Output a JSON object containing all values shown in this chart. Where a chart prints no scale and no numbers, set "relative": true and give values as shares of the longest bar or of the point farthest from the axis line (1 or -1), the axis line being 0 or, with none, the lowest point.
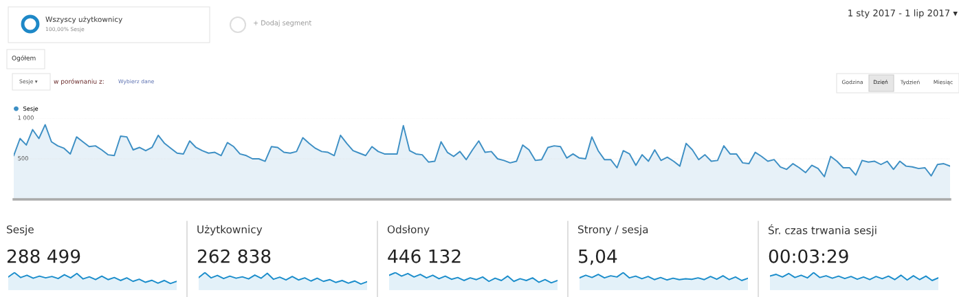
{
  "chart_data": [
    {
      "type": "area",
      "legend": "top left",
      "grid": "y",
      "tick_labels": "y",
      "marker": "none",
      "line_style": "solid",
      "annotations": [
        "Wszyscy użytkownicy",
        "100,00% Sesje",
        "+ Dodaj segment",
        "1 sty 2017 - 1 lip 2017 ▾",
        "Ogółem",
        "Sesje ▾",
        "w porównaniu z:",
        "Wybierz dane",
        "Godzina",
        "Dzień",
        "Tydzień",
        "Miesiąc"
      ],
      "categories": [
        null,
        null,
        null,
        null,
        null,
        null,
        null,
        null,
        null,
        null,
        null,
        null,
        null,
        null,
        null,
        null,
        null,
        null,
        null,
        null,
        null,
        null,
        null,
        null,
        null,
        null,
        null,
        null,
        null,
        null,
        null,
        null,
        null,
        null,
        null,
        null,
        null,
        null,
        null,
        null,
        null,
        null,
        null,
        null,
        null,
        null,
        null,
        null,
        null,
        null,
        null,
        null,
        null,
        null,
        null,
        null,
        null,
        null,
        null,
        null,
        null,
        null,
        null,
        null,
        null,
        null,
        null,
        null,
        null,
        null,
        null,
        null,
        null,
        null,
        null,
        null,
        null,
        null,
        null,
        null,
        null,
        null,
        null,
        null,
        null,
        null,
        null,
        null,
        null,
        null,
        null,
        null,
        null,
        null,
        null,
        null,
        null,
        null,
        null,
        null,
        null,
        null,
        null,
        null,
        null,
        null,
        null,
        null,
        null,
        null,
        null,
        null,
        null,
        null,
        null,
        null,
        null,
        null,
        null,
        null,
        null,
        null,
        null,
        null,
        null,
        null,
        null,
        null,
        null,
        null,
        null,
        null,
        null,
        null,
        null,
        null,
        null,
        null,
        null,
        null,
        null,
        null,
        null,
        null,
        null,
        null,
        null,
        null,
        null,
        null
      ],
      "ylim": [
        0,
        1000
      ],
      "yticks": [
        500,
        {
          "value": 1000,
          "label": "1 000"
        }
      ],
      "series": [
        {
          "name": "Sesje",
          "color": "#3d8fc4",
          "values": [
            540,
            750,
            670,
            860,
            750,
            920,
            710,
            660,
            630,
            560,
            770,
            710,
            650,
            660,
            610,
            550,
            540,
            780,
            770,
            610,
            640,
            600,
            640,
            790,
            690,
            630,
            570,
            560,
            720,
            640,
            600,
            570,
            580,
            540,
            700,
            650,
            560,
            540,
            500,
            500,
            470,
            650,
            640,
            580,
            570,
            590,
            760,
            690,
            630,
            590,
            580,
            540,
            790,
            690,
            600,
            570,
            540,
            650,
            590,
            560,
            560,
            560,
            910,
            600,
            560,
            550,
            460,
            470,
            710,
            580,
            530,
            590,
            490,
            610,
            720,
            580,
            590,
            500,
            480,
            450,
            470,
            670,
            610,
            480,
            490,
            640,
            660,
            650,
            510,
            560,
            510,
            500,
            770,
            600,
            490,
            490,
            390,
            600,
            560,
            420,
            550,
            470,
            610,
            480,
            520,
            470,
            410,
            690,
            610,
            490,
            550,
            470,
            480,
            660,
            560,
            560,
            450,
            440,
            580,
            530,
            470,
            490,
            400,
            370,
            440,
            390,
            330,
            420,
            380,
            280,
            530,
            470,
            390,
            390,
            300,
            480,
            460,
            470,
            430,
            470,
            370,
            470,
            410,
            400,
            380,
            390,
            290,
            430,
            440,
            410
          ]
        }
      ]
    },
    {
      "type": "area",
      "relative": true,
      "title": "Sesje",
      "subtitle": "288 499",
      "categories": [
        null,
        null,
        null,
        null,
        null,
        null,
        null,
        null,
        null,
        null,
        null,
        null,
        null,
        null,
        null,
        null,
        null,
        null,
        null,
        null,
        null,
        null,
        null,
        null,
        null,
        null,
        null,
        null
      ],
      "series": [
        {
          "color": "#1b8dcb",
          "values": [
            0.75,
            1.0,
            0.72,
            0.85,
            0.68,
            0.8,
            0.7,
            0.78,
            0.66,
            0.88,
            0.7,
            0.95,
            0.64,
            0.76,
            0.6,
            0.8,
            0.6,
            0.72,
            0.55,
            0.7,
            0.5,
            0.62,
            0.45,
            0.56,
            0.4,
            0.55,
            0.38,
            0.5
          ]
        }
      ]
    },
    {
      "type": "area",
      "relative": true,
      "title": "Użytkownicy",
      "subtitle": "262 838",
      "categories": [
        null,
        null,
        null,
        null,
        null,
        null,
        null,
        null,
        null,
        null,
        null,
        null,
        null,
        null,
        null,
        null,
        null,
        null,
        null,
        null,
        null,
        null,
        null,
        null,
        null,
        null,
        null,
        null
      ],
      "series": [
        {
          "color": "#1b8dcb",
          "values": [
            0.72,
            1.0,
            0.7,
            0.84,
            0.66,
            0.8,
            0.68,
            0.76,
            0.64,
            0.86,
            0.68,
            0.96,
            0.62,
            0.74,
            0.58,
            0.78,
            0.58,
            0.7,
            0.52,
            0.68,
            0.5,
            0.6,
            0.44,
            0.55,
            0.4,
            0.52,
            0.35,
            0.48
          ]
        }
      ]
    },
    {
      "type": "area",
      "relative": true,
      "title": "Odsłony",
      "subtitle": "446 132",
      "categories": [
        null,
        null,
        null,
        null,
        null,
        null,
        null,
        null,
        null,
        null,
        null,
        null,
        null,
        null,
        null,
        null,
        null,
        null,
        null,
        null,
        null,
        null,
        null,
        null,
        null,
        null,
        null,
        null
      ],
      "series": [
        {
          "color": "#1b8dcb",
          "values": [
            0.85,
            1.0,
            0.8,
            0.95,
            0.75,
            0.9,
            0.7,
            0.85,
            0.65,
            0.8,
            0.62,
            0.72,
            0.55,
            0.7,
            0.6,
            0.75,
            0.5,
            0.68,
            0.55,
            0.8,
            0.5,
            0.65,
            0.55,
            0.7,
            0.45,
            0.6,
            0.42,
            0.55
          ]
        }
      ]
    },
    {
      "type": "area",
      "relative": true,
      "title": "Strony / sesja",
      "subtitle": "5,04",
      "categories": [
        null,
        null,
        null,
        null,
        null,
        null,
        null,
        null,
        null,
        null,
        null,
        null,
        null,
        null,
        null,
        null,
        null,
        null,
        null,
        null,
        null,
        null,
        null,
        null,
        null,
        null,
        null,
        null
      ],
      "series": [
        {
          "color": "#1b8dcb",
          "values": [
            0.7,
            0.85,
            0.72,
            0.9,
            0.7,
            0.82,
            0.75,
            1.0,
            0.7,
            0.8,
            0.65,
            0.78,
            0.6,
            0.72,
            0.58,
            0.68,
            0.6,
            0.65,
            0.62,
            0.7,
            0.6,
            0.78,
            0.62,
            0.82,
            0.6,
            0.75,
            0.55,
            0.68
          ]
        }
      ]
    },
    {
      "type": "area",
      "relative": true,
      "title": "Śr. czas trwania sesji",
      "subtitle": "00:03:29",
      "categories": [
        null,
        null,
        null,
        null,
        null,
        null,
        null,
        null,
        null,
        null,
        null,
        null,
        null,
        null,
        null,
        null,
        null,
        null,
        null,
        null,
        null,
        null,
        null,
        null,
        null,
        null,
        null,
        null
      ],
      "series": [
        {
          "color": "#1b8dcb",
          "values": [
            0.8,
            0.9,
            0.75,
            0.95,
            0.72,
            0.85,
            0.7,
            1.0,
            0.72,
            0.82,
            0.68,
            0.8,
            0.66,
            0.78,
            0.62,
            0.75,
            0.6,
            0.78,
            0.65,
            0.8,
            0.6,
            0.85,
            0.58,
            0.82,
            0.6,
            0.8,
            0.55,
            0.7
          ]
        }
      ]
    }
  ]
}
